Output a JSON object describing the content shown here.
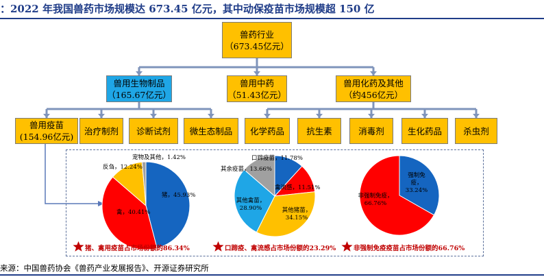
{
  "title": "：2022 年我国兽药市场规模达 673.45 亿元，其中动保疫苗市场规模超 150 亿",
  "root": {
    "name": "兽药行业",
    "value": "（673.45亿元）"
  },
  "level1": [
    {
      "name": "兽用生物制品",
      "value": "（165.67亿元）"
    },
    {
      "name": "兽用中药",
      "value": "（51.43亿元）"
    },
    {
      "name": "兽用化药及其他",
      "value": "（约456亿元）"
    }
  ],
  "level2": [
    {
      "name": "兽用疫苗",
      "value": "(154.96亿元)"
    },
    {
      "name": "治疗制剂"
    },
    {
      "name": "诊断试剂"
    },
    {
      "name": "微生态制品"
    },
    {
      "name": "化学药品"
    },
    {
      "name": "抗生素"
    },
    {
      "name": "消毒剂"
    },
    {
      "name": "生化药品"
    },
    {
      "name": "杀虫剂"
    }
  ],
  "chart_data": [
    {
      "type": "pie",
      "slices": [
        {
          "label": "猪",
          "value": 45.93,
          "text": "猪，45.93%",
          "color": "#1565c0"
        },
        {
          "label": "禽",
          "value": 40.41,
          "text": "禽，40.41%",
          "color": "#ff0000"
        },
        {
          "label": "反刍",
          "value": 12.24,
          "text": "反刍，12.24%",
          "color": "#ffc000"
        },
        {
          "label": "宠物及其他",
          "value": 1.42,
          "text": "宠物及其他，1.42%",
          "color": "#a0a0a0"
        }
      ],
      "footnote": "猪、禽用疫苗占市场份额的86.34%"
    },
    {
      "type": "pie",
      "slices": [
        {
          "label": "口蹄疫苗",
          "value": 11.78,
          "text": "口蹄疫苗，11.78%",
          "color": "#1565c0"
        },
        {
          "label": "禽流感",
          "value": 11.51,
          "text": "禽流感，11.51%",
          "color": "#ff0000"
        },
        {
          "label": "其他猪苗",
          "value": 34.15,
          "text": "其他猪苗，34.15%",
          "color": "#ffc000"
        },
        {
          "label": "其他禽苗",
          "value": 28.9,
          "text": "其他禽苗，28.90%",
          "color": "#1fa6e6"
        },
        {
          "label": "其余疫苗",
          "value": 13.66,
          "text": "其余疫苗，13.66%",
          "color": "#a0a0a0"
        }
      ],
      "footnote": "口蹄疫、禽流感占市场份额的23.29%"
    },
    {
      "type": "pie",
      "slices": [
        {
          "label": "强制免疫",
          "value": 33.24,
          "text": "强制免疫，33.24%",
          "color": "#1565c0"
        },
        {
          "label": "非强制免疫",
          "value": 66.76,
          "text": "非强制免疫，66.76%",
          "color": "#ff0000"
        }
      ],
      "footnote": "非强制免疫疫苗占市场份额的66.76%"
    }
  ],
  "source": "来源：中国兽药协会《兽药产业发展报告》、开源证券研究所"
}
